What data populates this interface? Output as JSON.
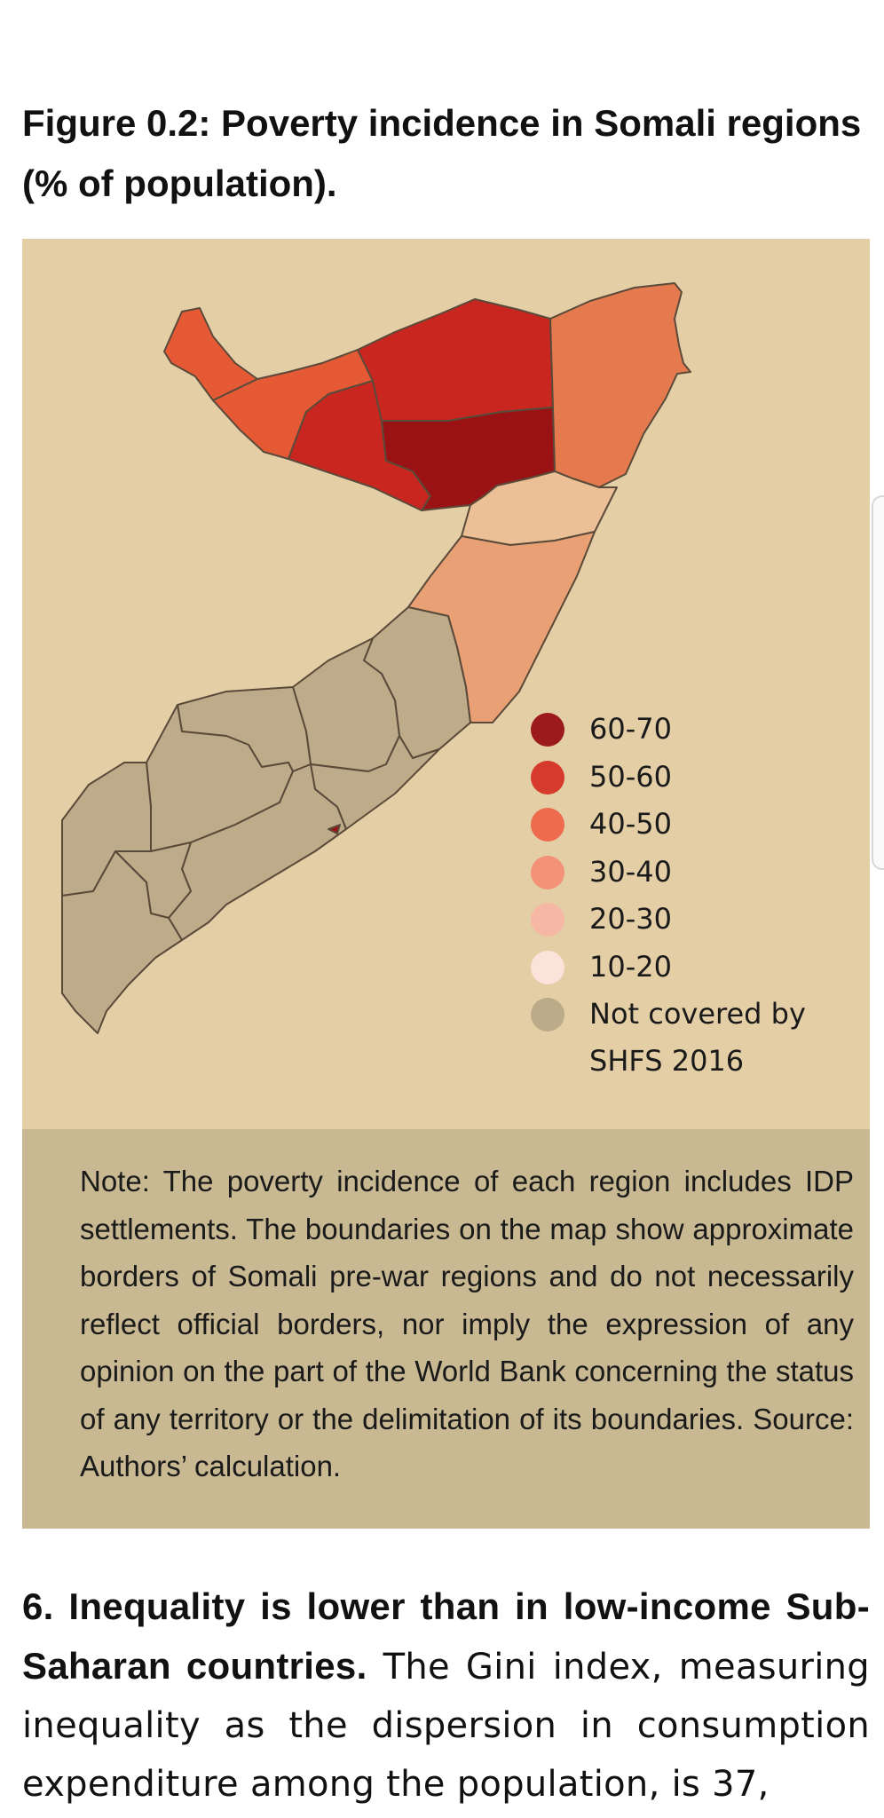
{
  "figure": {
    "title": "Figure 0.2: Poverty incidence in Somali regions (% of population)."
  },
  "legend": {
    "items": [
      {
        "label": "60-70",
        "color": "#9c1a1c"
      },
      {
        "label": "50-60",
        "color": "#d63a2c"
      },
      {
        "label": "40-50",
        "color": "#ee6b4f"
      },
      {
        "label": "30-40",
        "color": "#f39276"
      },
      {
        "label": "20-30",
        "color": "#f6b8a4"
      },
      {
        "label": "10-20",
        "color": "#fbe2da"
      },
      {
        "label": "Not covered by\nSHFS 2016",
        "color": "#bcab88"
      }
    ]
  },
  "region_colors": {
    "c60_70": "#9a1214",
    "c50_60": "#c8261e",
    "c40_50_north": "#e55a35",
    "c40_50_east": "#e57a4e",
    "c30_40": "#e9a074",
    "c20_30": "#ecc096",
    "not_covered": "#bdab89",
    "border": "#5a4a3a"
  },
  "note": {
    "text": "Note: The poverty incidence of each region includes IDP settlements. The boundaries on the map show approximate borders of Somali pre-war regions and do not necessarily reflect official borders, nor imply the expression of any opinion on the part of the World Bank concerning the status of any territory or the delimitation of its boundaries. Source: Authors’ calculation."
  },
  "body": {
    "lead": "6. Inequality is lower than in low-income Sub-Saharan countries.",
    "text": " The Gini index, measuring inequality as the dispersion in consumption expenditure among the population, is 37,"
  }
}
